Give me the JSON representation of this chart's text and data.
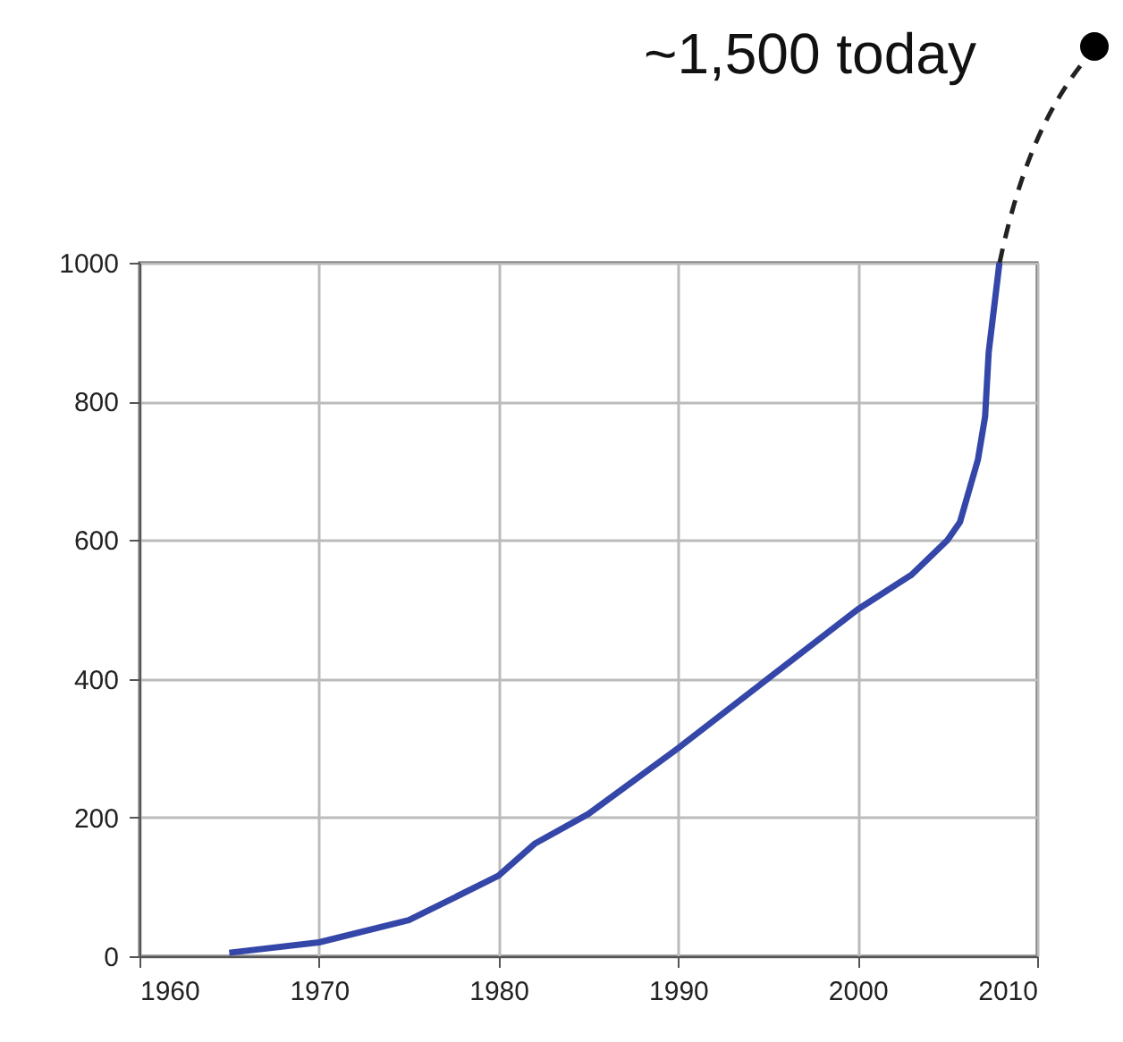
{
  "chart_data": {
    "type": "line",
    "x": [
      1965,
      1970,
      1975,
      1980,
      1982,
      1985,
      1990,
      1995,
      2000,
      2003,
      2005,
      2005.7,
      2006.7,
      2007.1,
      2007.3,
      2007.9
    ],
    "series": [
      {
        "color": "#3446a8",
        "values": [
          5,
          20,
          52,
          116,
          162,
          205,
          300,
          400,
          500,
          550,
          600,
          626,
          716,
          778,
          871,
          1000
        ]
      }
    ],
    "xlim": [
      1960,
      2010
    ],
    "xticks": [
      1960,
      1970,
      1980,
      1990,
      2000,
      2010
    ],
    "ylim": [
      0,
      1000
    ],
    "yticks": [
      0,
      200,
      400,
      600,
      800,
      1000
    ],
    "grid": true,
    "annotations": [
      "~1,500 today"
    ]
  }
}
